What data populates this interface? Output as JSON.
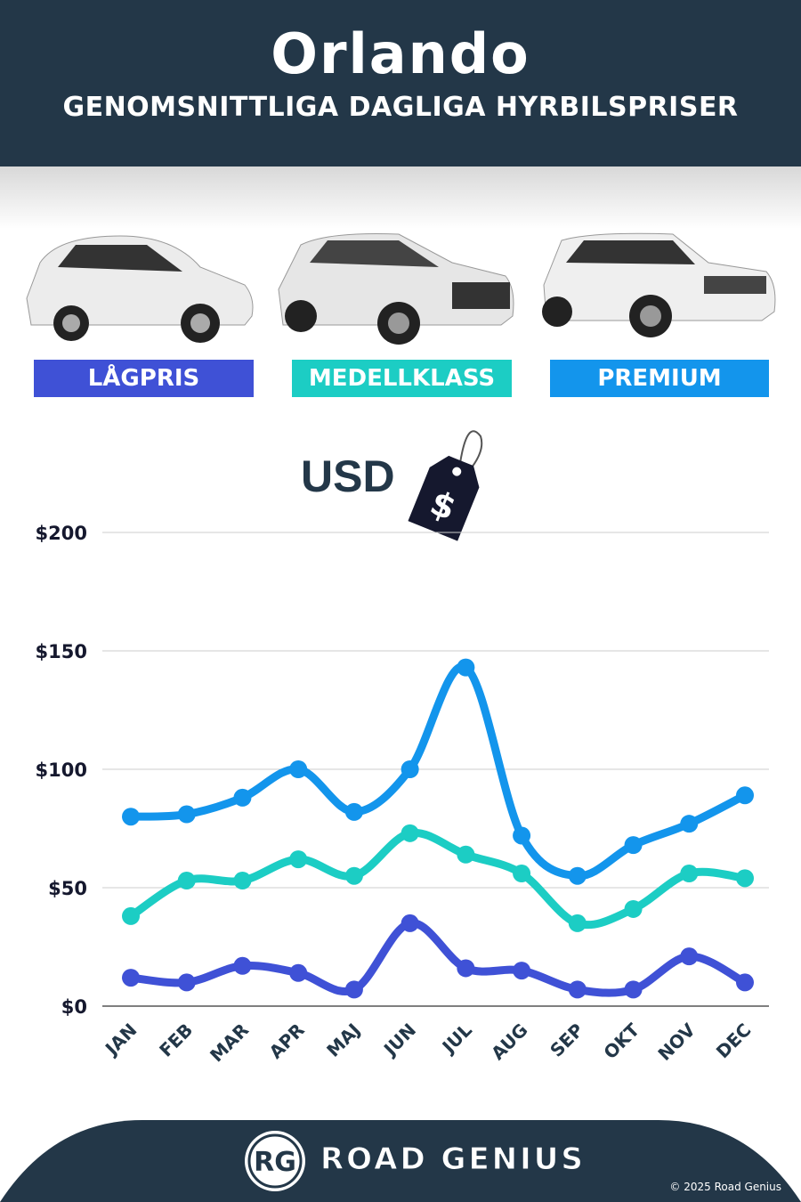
{
  "header": {
    "title": "Orlando",
    "subtitle": "GENOMSNITTLIGA DAGLIGA HYRBILSPRISER"
  },
  "categories_badges": [
    {
      "label": "LÅGPRIS",
      "color": "#3f51d6"
    },
    {
      "label": "MEDELLKLASS",
      "color": "#1ccdc4"
    },
    {
      "label": "PREMIUM",
      "color": "#1395ec"
    }
  ],
  "currency": "USD",
  "price_tag_symbol": "$",
  "chart_data": {
    "type": "line",
    "categories": [
      "JAN",
      "FEB",
      "MAR",
      "APR",
      "MAJ",
      "JUN",
      "JUL",
      "AUG",
      "SEP",
      "OKT",
      "NOV",
      "DEC"
    ],
    "ylim": [
      0,
      200
    ],
    "yticks": [
      {
        "v": 0,
        "label": "$0"
      },
      {
        "v": 50,
        "label": "$50"
      },
      {
        "v": 100,
        "label": "$100"
      },
      {
        "v": 150,
        "label": "$150"
      },
      {
        "v": 200,
        "label": "$200"
      }
    ],
    "grid": true,
    "series": [
      {
        "name": "PREMIUM",
        "color": "#1395ec",
        "values": [
          80,
          81,
          88,
          100,
          82,
          100,
          143,
          72,
          55,
          68,
          77,
          89
        ]
      },
      {
        "name": "MEDELLKLASS",
        "color": "#1ccdc4",
        "values": [
          38,
          53,
          53,
          62,
          55,
          73,
          64,
          56,
          35,
          41,
          56,
          54
        ]
      },
      {
        "name": "LÅGPRIS",
        "color": "#3f51d6",
        "values": [
          12,
          10,
          17,
          14,
          7,
          35,
          16,
          15,
          7,
          7,
          21,
          10
        ]
      }
    ]
  },
  "footer": {
    "logo": "RG",
    "brand": "ROAD GENIUS",
    "copyright": "© 2025 Road Genius"
  }
}
